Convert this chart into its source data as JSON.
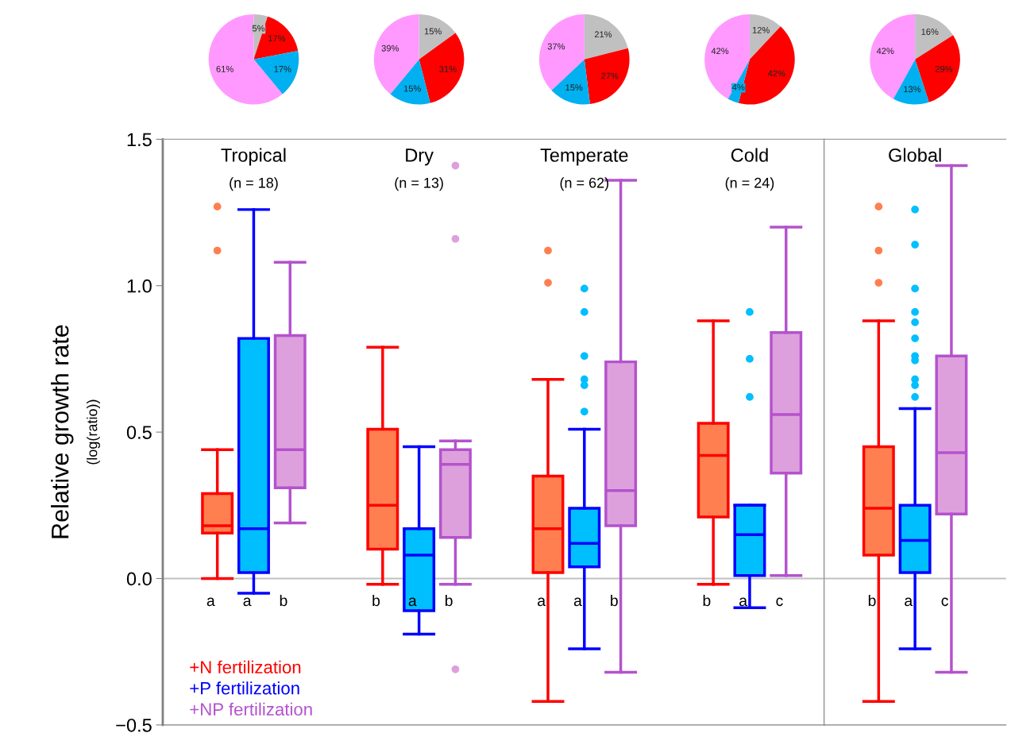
{
  "chart_data": [
    {
      "type": "pie",
      "categories": [
        null,
        null,
        null,
        null
      ],
      "values": [
        5,
        17,
        17,
        61
      ],
      "colors": [
        "#c0c0c0",
        "#ff0000",
        "#00b0f0",
        "#ff99ff"
      ],
      "value_labels": [
        "5%",
        "17%",
        "17%",
        "61%"
      ]
    },
    {
      "type": "pie",
      "categories": [
        null,
        null,
        null,
        null
      ],
      "values": [
        15,
        31,
        15,
        39
      ],
      "colors": [
        "#c0c0c0",
        "#ff0000",
        "#00b0f0",
        "#ff99ff"
      ],
      "value_labels": [
        "15%",
        "31%",
        "15%",
        "39%"
      ]
    },
    {
      "type": "pie",
      "categories": [
        null,
        null,
        null,
        null
      ],
      "values": [
        21,
        27,
        15,
        37
      ],
      "colors": [
        "#c0c0c0",
        "#ff0000",
        "#00b0f0",
        "#ff99ff"
      ],
      "value_labels": [
        "21%",
        "27%",
        "15%",
        "37%"
      ]
    },
    {
      "type": "pie",
      "categories": [
        null,
        null,
        null,
        null
      ],
      "values": [
        12,
        42,
        4,
        42
      ],
      "colors": [
        "#c0c0c0",
        "#ff0000",
        "#00b0f0",
        "#ff99ff"
      ],
      "value_labels": [
        "12%",
        "42%",
        "4%",
        "42%"
      ]
    },
    {
      "type": "pie",
      "categories": [
        null,
        null,
        null,
        null
      ],
      "values": [
        16,
        29,
        13,
        42
      ],
      "colors": [
        "#c0c0c0",
        "#ff0000",
        "#00b0f0",
        "#ff99ff"
      ],
      "value_labels": [
        "16%",
        "29%",
        "13%",
        "42%"
      ]
    },
    {
      "type": "box",
      "categories": [
        "Tropical\n(n = 18)",
        "Dry\n(n = 13)",
        "Temperate\n(n = 62)",
        "Cold\n(n = 24)"
      ],
      "ylabel": "Relative growth rate\n(log(ratio))",
      "ylim": [
        -0.5,
        1.5
      ],
      "yticks": [
        {
          "value": -0.5,
          "label": "−0.5"
        },
        {
          "value": 0,
          "label": "0.0"
        },
        {
          "value": 0.5,
          "label": "0.5"
        },
        {
          "value": 1,
          "label": "1.0"
        },
        {
          "value": 1.5,
          "label": "1.5"
        }
      ],
      "legend": "bottom left",
      "ref_lines": [
        {
          "axis": "y",
          "value": 0,
          "color": "#c0c0c0"
        }
      ],
      "series": [
        {
          "name": "+N fertilization",
          "color": "#ff0000",
          "colors": [
            "#ff7f50",
            "#ff7f50",
            "#ff7f50",
            "#ff7f50"
          ],
          "value_labels": [
            "a",
            "b",
            "a",
            "b"
          ],
          "boxes": [
            {
              "low": 0.0,
              "q1": 0.155,
              "median": 0.18,
              "q3": 0.29,
              "high": 0.44,
              "outliers": [
                1.12,
                1.27
              ]
            },
            {
              "low": -0.02,
              "q1": 0.1,
              "median": 0.25,
              "q3": 0.51,
              "high": 0.79
            },
            {
              "low": -0.42,
              "q1": 0.02,
              "median": 0.17,
              "q3": 0.35,
              "high": 0.68,
              "outliers": [
                1.01,
                1.12
              ]
            },
            {
              "low": -0.02,
              "q1": 0.21,
              "median": 0.42,
              "q3": 0.53,
              "high": 0.88
            }
          ]
        },
        {
          "name": "+P fertilization",
          "color": "#0000ff",
          "colors": [
            "#00bfff",
            "#00bfff",
            "#00bfff",
            "#00bfff"
          ],
          "value_labels": [
            "a",
            "a",
            "a",
            "a"
          ],
          "boxes": [
            {
              "low": -0.05,
              "q1": 0.02,
              "median": 0.17,
              "q3": 0.82,
              "high": 1.26
            },
            {
              "low": -0.19,
              "q1": -0.11,
              "median": 0.08,
              "q3": 0.17,
              "high": 0.45
            },
            {
              "low": -0.24,
              "q1": 0.04,
              "median": 0.12,
              "q3": 0.24,
              "high": 0.51,
              "outliers": [
                0.57,
                0.66,
                0.68,
                0.76,
                0.91,
                0.99
              ]
            },
            {
              "low": -0.1,
              "q1": 0.01,
              "median": 0.15,
              "q3": 0.25,
              "high": 0.25,
              "outliers": [
                0.62,
                0.75,
                0.91
              ]
            }
          ]
        },
        {
          "name": "+NP fertilization",
          "color": "#b452cd",
          "colors": [
            "#dda0dd",
            "#dda0dd",
            "#dda0dd",
            "#dda0dd"
          ],
          "value_labels": [
            "b",
            "b",
            "b",
            "c"
          ],
          "boxes": [
            {
              "low": 0.19,
              "q1": 0.31,
              "median": 0.44,
              "q3": 0.83,
              "high": 1.08
            },
            {
              "low": -0.02,
              "q1": 0.14,
              "median": 0.39,
              "q3": 0.44,
              "high": 0.47,
              "outliers": [
                -0.31,
                1.16,
                1.41
              ]
            },
            {
              "low": -0.32,
              "q1": 0.18,
              "median": 0.3,
              "q3": 0.74,
              "high": 1.36
            },
            {
              "low": 0.01,
              "q1": 0.36,
              "median": 0.56,
              "q3": 0.84,
              "high": 1.2
            }
          ]
        }
      ]
    },
    {
      "type": "box",
      "categories": [
        "Global"
      ],
      "ylim": [
        -0.5,
        1.5
      ],
      "tick_labels": false,
      "ref_lines": [
        {
          "axis": "y",
          "value": 0,
          "color": "#c0c0c0"
        }
      ],
      "series": [
        {
          "color": "#ff0000",
          "colors": [
            "#ff7f50"
          ],
          "value_labels": [
            "b"
          ],
          "boxes": [
            {
              "low": -0.42,
              "q1": 0.08,
              "median": 0.24,
              "q3": 0.45,
              "high": 0.88,
              "outliers": [
                1.01,
                1.12,
                1.27
              ]
            }
          ]
        },
        {
          "color": "#0000ff",
          "colors": [
            "#00bfff"
          ],
          "value_labels": [
            "a"
          ],
          "boxes": [
            {
              "low": -0.24,
              "q1": 0.02,
              "median": 0.13,
              "q3": 0.25,
              "high": 0.58,
              "outliers": [
                0.62,
                0.66,
                0.68,
                0.745,
                0.76,
                0.82,
                0.875,
                0.91,
                0.99,
                1.14,
                1.26
              ]
            }
          ]
        },
        {
          "color": "#b452cd",
          "colors": [
            "#dda0dd"
          ],
          "value_labels": [
            "c"
          ],
          "boxes": [
            {
              "low": -0.32,
              "q1": 0.22,
              "median": 0.43,
              "q3": 0.76,
              "high": 1.41
            }
          ]
        }
      ]
    }
  ]
}
